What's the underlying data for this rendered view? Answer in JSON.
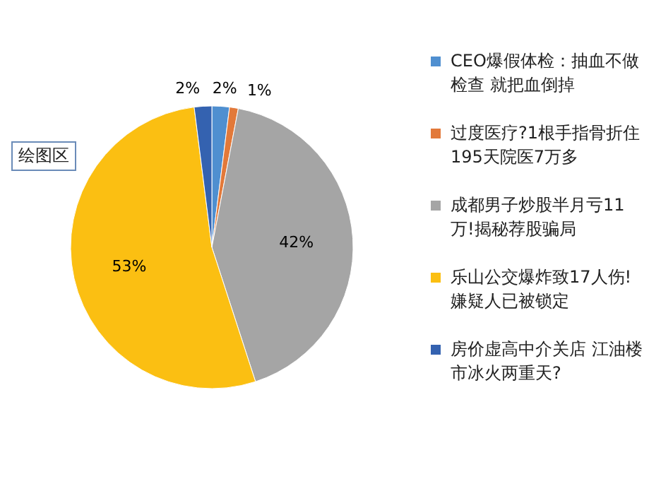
{
  "chart_data": {
    "type": "pie",
    "categories": [
      "CEO爆假体检：抽血不做检查 就把血倒掉",
      "过度医疗?1根手指骨折住195天院医7万多",
      "成都男子炒股半月亏11万!揭秘荐股骗局",
      "乐山公交爆炸致17人伤!嫌疑人已被锁定",
      "房价虚高中介关店 江油楼市冰火两重天?"
    ],
    "values": [
      2,
      1,
      42,
      53,
      2
    ],
    "colors": [
      "#4f8fd0",
      "#e2793a",
      "#a5a5a5",
      "#fbbf12",
      "#3462b0"
    ],
    "value_labels": [
      "2%",
      "1%",
      "42%",
      "53%",
      "2%"
    ],
    "legend": "right",
    "annotations": [
      "绘图区"
    ]
  }
}
